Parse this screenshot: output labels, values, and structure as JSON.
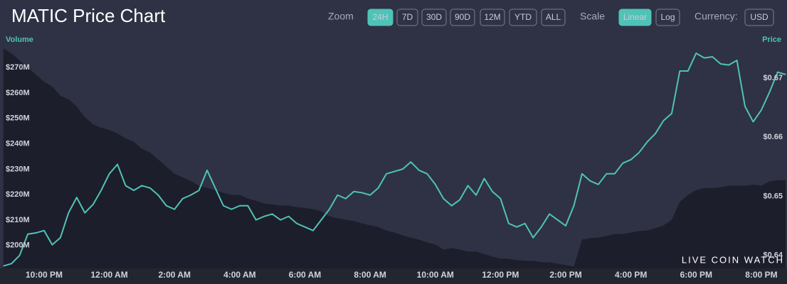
{
  "header": {
    "title": "MATIC Price Chart"
  },
  "controls": {
    "zoom": {
      "label": "Zoom",
      "options": [
        "24H",
        "7D",
        "30D",
        "90D",
        "12M",
        "YTD",
        "ALL"
      ],
      "selected": 0
    },
    "scale": {
      "label": "Scale",
      "options": [
        "Linear",
        "Log"
      ],
      "selected": 0
    },
    "currency": {
      "label": "Currency:",
      "options": [
        "USD"
      ],
      "selected": -1
    }
  },
  "watermark": "LIVE COIN WATCH",
  "chart_data": {
    "type": "line",
    "ylabel": "Volume",
    "y2label": "Price",
    "categories": [
      null,
      null,
      null,
      null,
      null,
      "10:00 PM",
      null,
      null,
      null,
      null,
      null,
      null,
      null,
      "12:00 AM",
      null,
      null,
      null,
      null,
      null,
      null,
      null,
      "2:00 AM",
      null,
      null,
      null,
      null,
      null,
      null,
      null,
      "4:00 AM",
      null,
      null,
      null,
      null,
      null,
      null,
      null,
      "6:00 AM",
      null,
      null,
      null,
      null,
      null,
      null,
      null,
      "8:00 AM",
      null,
      null,
      null,
      null,
      null,
      null,
      null,
      "10:00 AM",
      null,
      null,
      null,
      null,
      null,
      null,
      null,
      "12:00 PM",
      null,
      null,
      null,
      null,
      null,
      null,
      null,
      "2:00 PM",
      null,
      null,
      null,
      null,
      null,
      null,
      null,
      "4:00 PM",
      null,
      null,
      null,
      null,
      null,
      null,
      null,
      "6:00 PM",
      null,
      null,
      null,
      null,
      null,
      null,
      null,
      "8:00 PM",
      null,
      null,
      null
    ],
    "series": [
      {
        "name": "Volume",
        "type": "area",
        "color": "#1d1e2b",
        "values": [
          277.5,
          275.6,
          272.8,
          270.0,
          267.2,
          264.4,
          262.5,
          258.9,
          257.5,
          254.7,
          250.5,
          247.7,
          246.3,
          245.5,
          244.1,
          242.1,
          240.8,
          238.0,
          236.6,
          233.8,
          231.0,
          228.2,
          226.8,
          225.4,
          223.5,
          222.6,
          221.8,
          220.7,
          219.9,
          219.9,
          218.5,
          217.6,
          216.5,
          216.2,
          215.7,
          215.7,
          215.1,
          214.8,
          214.3,
          213.5,
          211.5,
          210.7,
          210.1,
          209.6,
          208.7,
          207.9,
          207.3,
          205.9,
          205.1,
          204.0,
          203.1,
          202.3,
          201.2,
          200.4,
          198.4,
          199.0,
          198.4,
          197.6,
          197.6,
          196.7,
          195.6,
          194.8,
          194.8,
          194.2,
          194.0,
          194.0,
          193.4,
          193.4,
          192.8,
          192.3,
          191.7,
          202.3,
          202.9,
          203.1,
          203.7,
          204.5,
          204.5,
          205.1,
          205.7,
          205.9,
          206.8,
          207.9,
          210.1,
          217.1,
          219.9,
          221.8,
          222.6,
          222.6,
          222.9,
          223.5,
          223.5,
          223.5,
          224.0,
          223.5,
          225.2,
          225.7,
          225.7
        ]
      },
      {
        "name": "Price",
        "type": "line",
        "axis": "y2",
        "color": "#4fc3b7",
        "values": [
          0.6382,
          0.6386,
          0.64,
          0.6436,
          0.6438,
          0.6442,
          0.6418,
          0.643,
          0.6472,
          0.6498,
          0.6472,
          0.6486,
          0.651,
          0.6538,
          0.6554,
          0.6518,
          0.651,
          0.6518,
          0.6514,
          0.6502,
          0.6484,
          0.6478,
          0.6496,
          0.6502,
          0.651,
          0.6544,
          0.6514,
          0.6484,
          0.6478,
          0.6484,
          0.6484,
          0.646,
          0.6466,
          0.647,
          0.646,
          0.6466,
          0.6454,
          0.6448,
          0.6442,
          0.646,
          0.6478,
          0.6502,
          0.6496,
          0.6508,
          0.6506,
          0.6502,
          0.6514,
          0.6538,
          0.6542,
          0.6546,
          0.6558,
          0.6544,
          0.6538,
          0.652,
          0.6496,
          0.6484,
          0.6494,
          0.6518,
          0.6502,
          0.653,
          0.6508,
          0.6496,
          0.6454,
          0.6448,
          0.6454,
          0.643,
          0.6448,
          0.647,
          0.646,
          0.645,
          0.6484,
          0.6538,
          0.6526,
          0.652,
          0.6538,
          0.6538,
          0.6556,
          0.6562,
          0.6574,
          0.6592,
          0.6606,
          0.6628,
          0.664,
          0.6712,
          0.6712,
          0.6742,
          0.6734,
          0.6736,
          0.6724,
          0.6722,
          0.673,
          0.6652,
          0.6626,
          0.6646,
          0.6676,
          0.671,
          0.6706
        ]
      }
    ],
    "ylim": [
      191,
      284
    ],
    "yticks": [
      {
        "value": 200,
        "label": "$200M"
      },
      {
        "value": 210,
        "label": "$210M"
      },
      {
        "value": 220,
        "label": "$220M"
      },
      {
        "value": 230,
        "label": "$230M"
      },
      {
        "value": 240,
        "label": "$240M"
      },
      {
        "value": 250,
        "label": "$250M"
      },
      {
        "value": 260,
        "label": "$260M"
      },
      {
        "value": 270,
        "label": "$270M"
      }
    ],
    "y2lim": [
      0.6378,
      0.6778
    ],
    "y2ticks": [
      {
        "value": 0.64,
        "label": "$0.64"
      },
      {
        "value": 0.65,
        "label": "$0.65"
      },
      {
        "value": 0.66,
        "label": "$0.66"
      },
      {
        "value": 0.67,
        "label": "$0.67"
      }
    ]
  }
}
